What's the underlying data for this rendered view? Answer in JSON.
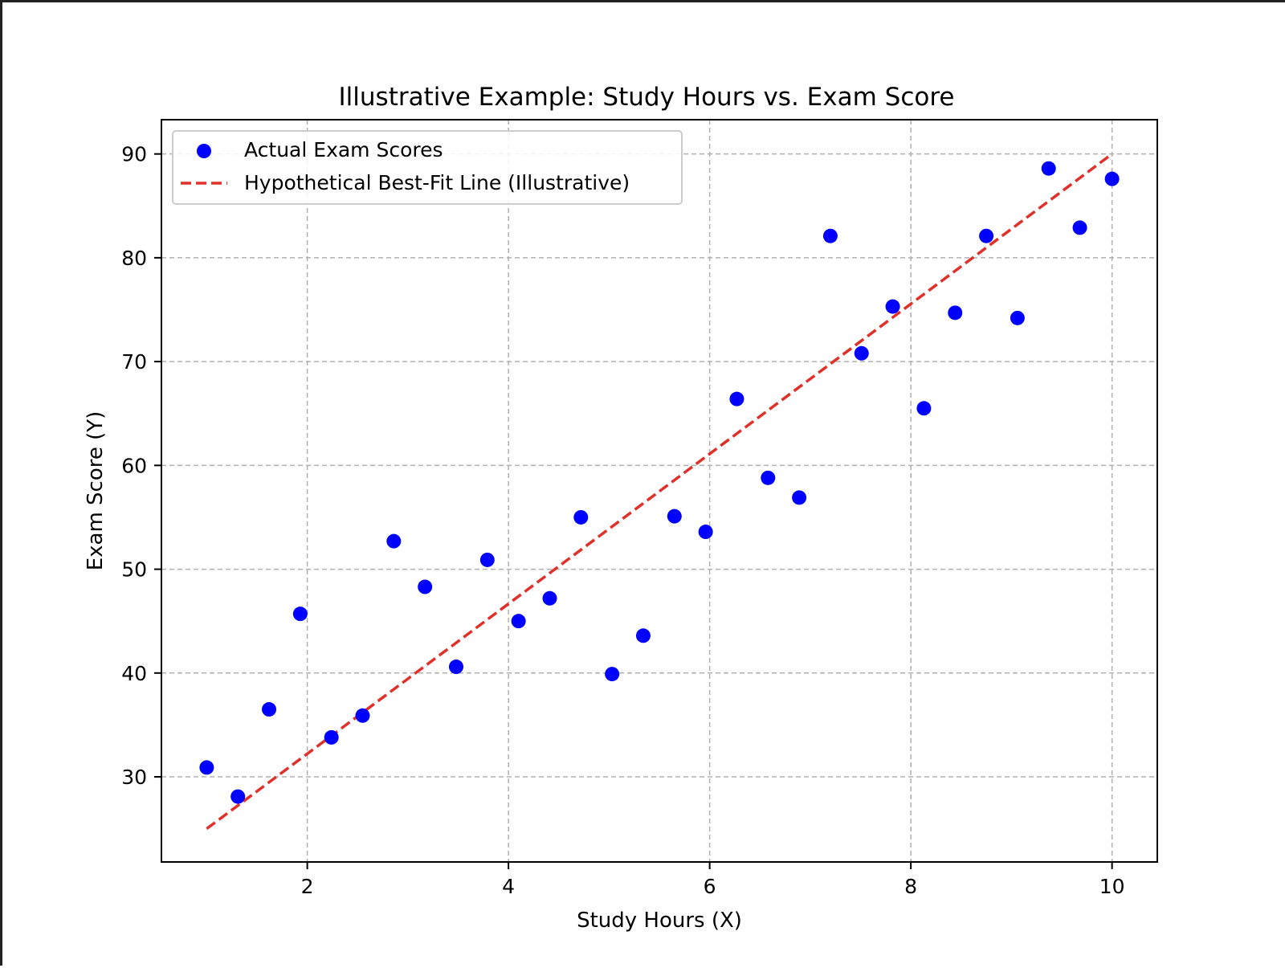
{
  "chart_data": {
    "type": "scatter",
    "title": "Illustrative Example: Study Hours vs. Exam Score",
    "xlabel": "Study Hours (X)",
    "ylabel": "Exam Score (Y)",
    "xlim": [
      0.55,
      10.45
    ],
    "ylim": [
      21.8,
      93.3
    ],
    "xticks": [
      2,
      4,
      6,
      8,
      10
    ],
    "yticks": [
      30,
      40,
      50,
      60,
      70,
      80,
      90
    ],
    "grid": true,
    "legend_position": "upper-left",
    "series": [
      {
        "name": "Actual Exam Scores",
        "kind": "scatter",
        "color": "#0000ff",
        "x": [
          1.0,
          1.31,
          1.62,
          1.93,
          2.24,
          2.55,
          2.86,
          3.17,
          3.48,
          3.79,
          4.1,
          4.41,
          4.72,
          5.03,
          5.34,
          5.65,
          5.96,
          6.27,
          6.58,
          6.89,
          7.2,
          7.51,
          7.82,
          8.13,
          8.44,
          8.75,
          9.06,
          9.37,
          9.68,
          10.0
        ],
        "y": [
          30.9,
          28.1,
          36.5,
          45.7,
          33.8,
          35.9,
          52.7,
          48.3,
          40.6,
          50.9,
          45.0,
          47.2,
          55.0,
          39.9,
          43.6,
          55.1,
          53.6,
          66.4,
          58.8,
          56.9,
          82.1,
          70.8,
          75.3,
          65.5,
          74.7,
          82.1,
          74.2,
          88.6,
          82.9,
          87.6
        ]
      },
      {
        "name": "Hypothetical Best-Fit Line (Illustrative)",
        "kind": "line",
        "style": "dashed",
        "color": "#e0302a",
        "x": [
          1.0,
          10.0
        ],
        "y": [
          25.0,
          90.0
        ]
      }
    ]
  }
}
